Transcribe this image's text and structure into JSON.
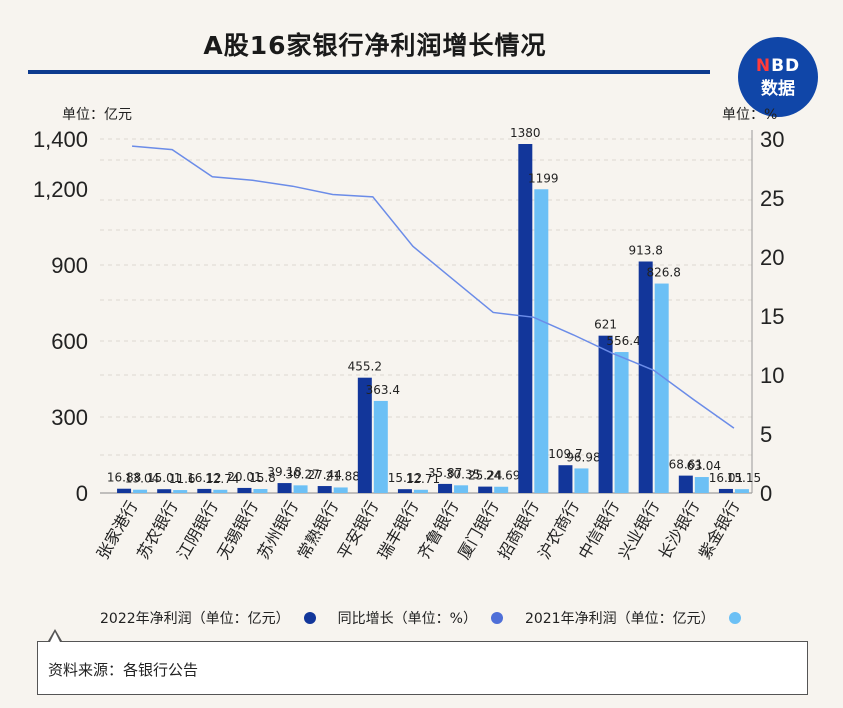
{
  "title": "A股16家银行净利润增长情况",
  "logo": {
    "text_nbd_n": "N",
    "text_nbd_rest": "BD",
    "text_cn": "数据"
  },
  "unit_left": "单位：亿元",
  "unit_right": "单位：%",
  "source": "资料来源：各银行公告",
  "colors": {
    "bar_2022": "#12369a",
    "bar_2021": "#6cc0f5",
    "line_growth": "#6b8ce8",
    "dot_growth": "#4f6fd8"
  },
  "chart_data": {
    "type": "bar+line",
    "categories": [
      "张家港行",
      "苏农银行",
      "江阴银行",
      "无锡银行",
      "苏州银行",
      "常熟银行",
      "平安银行",
      "瑞丰银行",
      "齐鲁银行",
      "厦门银行",
      "招商银行",
      "沪农商行",
      "中信银行",
      "兴业银行",
      "长沙银行",
      "紫金银行"
    ],
    "left_axis": {
      "ticks": [
        0,
        300,
        600,
        900,
        1200,
        1400
      ],
      "tick_labels": [
        "0",
        "300",
        "600",
        "900",
        "1,200",
        "1,400"
      ]
    },
    "right_axis": {
      "range": [
        0,
        30
      ],
      "ticks": [
        0,
        5,
        10,
        15,
        20,
        25,
        30
      ],
      "tick_labels": [
        "0",
        "5",
        "10",
        "15",
        "20",
        "25",
        "30"
      ]
    },
    "series": [
      {
        "name": "2022年净利润（单位：亿元）",
        "axis": "left",
        "values": [
          16.88,
          15.01,
          16.12,
          20.01,
          39.18,
          27.44,
          455.2,
          15.12,
          35.87,
          25.24,
          1380,
          109.7,
          621,
          913.8,
          68.61,
          16.01
        ],
        "labels": [
          "16.88",
          "15.01",
          "16.12",
          "20.01",
          "39.18",
          "27.44",
          "455.2",
          "15.12",
          "35.87",
          "25.24",
          "1380",
          "109.7",
          "621",
          "913.8",
          "68.61",
          "16.01"
        ]
      },
      {
        "name": "同比增长（单位：%）",
        "axis": "right",
        "values": [
          29.4,
          29.1,
          26.8,
          26.5,
          26.0,
          25.3,
          25.1,
          20.9,
          18.1,
          15.3,
          14.9,
          13.4,
          11.8,
          10.4,
          7.9,
          5.5
        ]
      },
      {
        "name": "2021年净利润（单位：亿元）",
        "axis": "left",
        "values": [
          13.04,
          11.6,
          12.74,
          15.8,
          30.27,
          21.88,
          363.4,
          12.71,
          30.35,
          24.69,
          1199,
          96.98,
          556.4,
          826.8,
          63.04,
          15.15
        ],
        "labels": [
          "13.04",
          "11.6",
          "12.74",
          "15.8",
          "30.27",
          "21.88",
          "363.4",
          "12.71",
          "30.35",
          "24.69",
          "1199",
          "96.98",
          "556.4",
          "826.8",
          "63.04",
          "15.15"
        ]
      }
    ],
    "legend_position": "bottom",
    "grid": "dashed horizontal"
  }
}
